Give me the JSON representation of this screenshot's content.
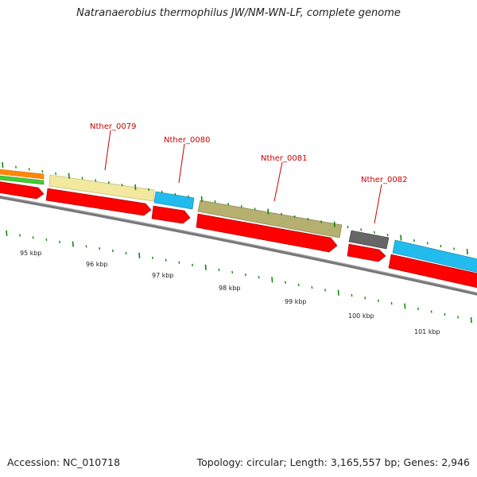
{
  "header": {
    "title": "Natranaerobius thermophilus JW/NM-WN-LF, complete genome"
  },
  "footer": {
    "accession": "Accession: NC_010718",
    "summary": "Topology: circular; Length: 3,165,557 bp; Genes: 2,946"
  },
  "colors": {
    "cds_red": "#ff0000",
    "gene_label_red": "#cc0000",
    "tick_green": "#118811",
    "backbone_gray": "#777777",
    "cog_yellow": "#f2e8a0",
    "cog_cyan": "#22bbee",
    "cog_olive": "#b5b070",
    "cog_dark_gray": "#666666",
    "cog_orange": "#ff8800",
    "cog_green": "#44cc33"
  },
  "genes": [
    {
      "label": "Nther_0079",
      "cog_color": "yellow"
    },
    {
      "label": "Nther_0080",
      "cog_color": "cyan"
    },
    {
      "label": "Nther_0081",
      "cog_color": "olive"
    },
    {
      "label": "Nther_0082",
      "cog_color": "dark-gray"
    }
  ],
  "ruler": {
    "unit": "kbp",
    "labels": [
      "95 kbp",
      "96 kbp",
      "97 kbp",
      "98 kbp",
      "99 kbp",
      "100 kbp",
      "101 kbp"
    ]
  }
}
